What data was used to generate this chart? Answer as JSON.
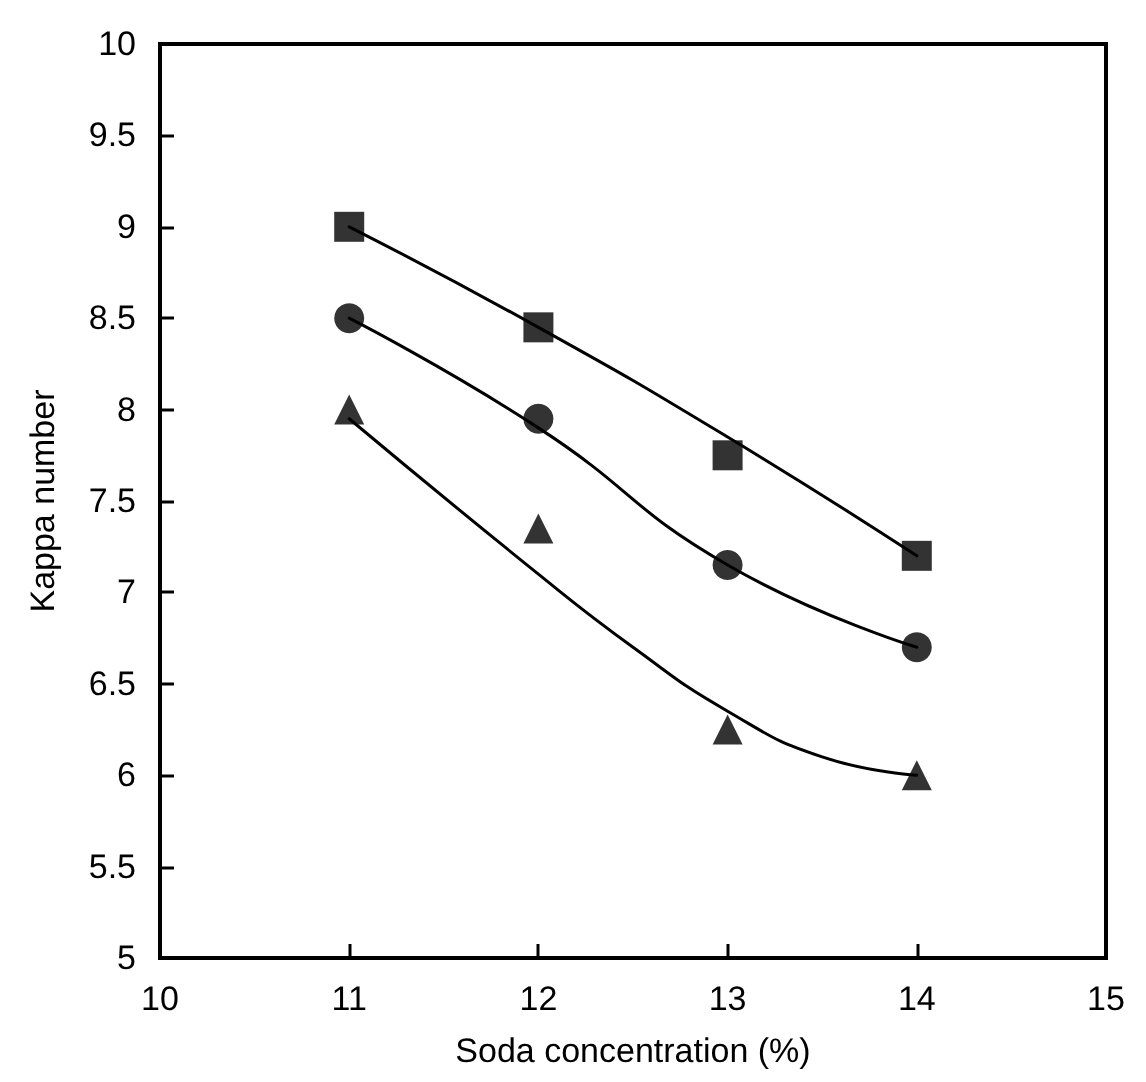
{
  "chart_data": {
    "type": "scatter",
    "xlabel": "Soda concentration (%)",
    "ylabel": "Kappa number",
    "xlim": [
      10,
      15
    ],
    "xticks": [
      10,
      11,
      12,
      13,
      14,
      15
    ],
    "ylim": [
      5,
      10
    ],
    "yticks": [
      5,
      5.5,
      6,
      6.5,
      7,
      7.5,
      8,
      8.5,
      9,
      9.5,
      10
    ],
    "grid": false,
    "series": [
      {
        "marker": "square",
        "color": "#000000",
        "x": [
          11,
          12,
          13,
          14
        ],
        "values": [
          9.0,
          8.45,
          7.75,
          7.2
        ]
      },
      {
        "marker": "circle",
        "color": "#000000",
        "x": [
          11,
          12,
          13,
          14
        ],
        "values": [
          8.5,
          7.95,
          7.15,
          6.7
        ]
      },
      {
        "marker": "triangle",
        "color": "#000000",
        "x": [
          11,
          12,
          13,
          14
        ],
        "values": [
          8.0,
          7.35,
          6.25,
          6.0
        ]
      },
      {
        "type": "line",
        "marker": "none",
        "color": "#000000",
        "x": [
          11,
          12,
          13,
          14
        ],
        "values": [
          9.0,
          8.45,
          7.85,
          7.2
        ]
      },
      {
        "type": "line",
        "marker": "none",
        "color": "#000000",
        "x": [
          11,
          12,
          13,
          14
        ],
        "values": [
          8.5,
          7.9,
          7.15,
          6.7
        ]
      },
      {
        "type": "line",
        "marker": "none",
        "color": "#000000",
        "x": [
          11,
          12,
          12.5,
          13,
          13.5,
          14
        ],
        "values": [
          7.95,
          7.1,
          6.7,
          6.35,
          6.1,
          6.0
        ]
      }
    ]
  }
}
